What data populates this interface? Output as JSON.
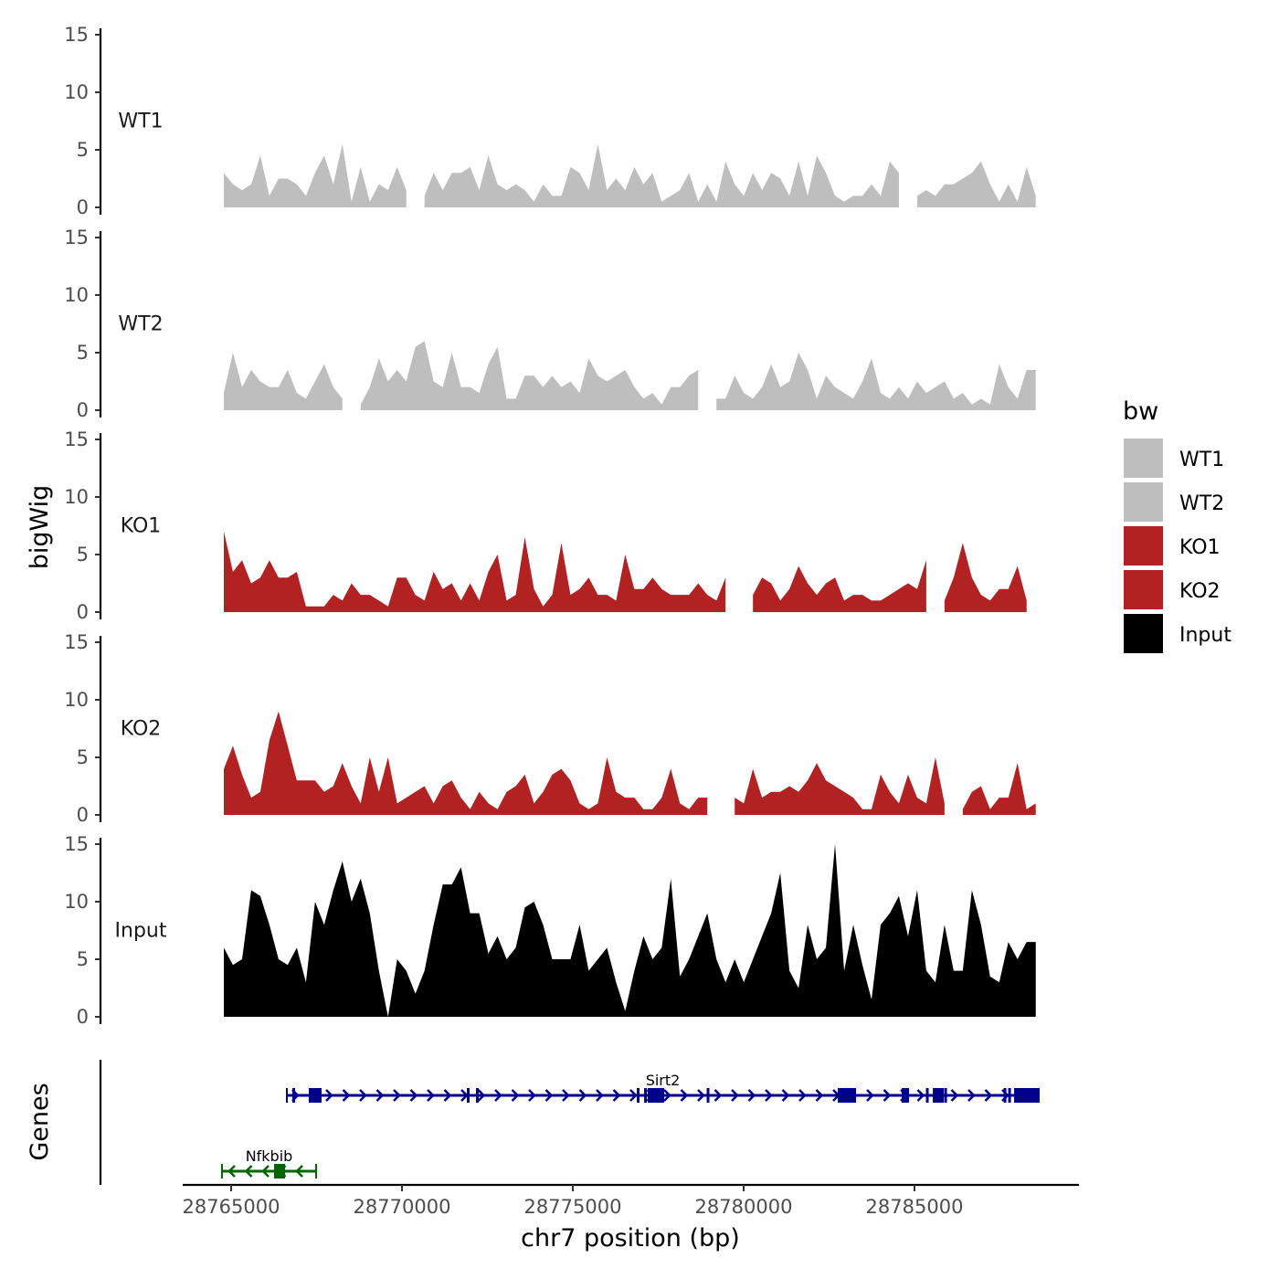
{
  "chart_data": {
    "type": "area",
    "title": "",
    "ylabel": "bigWig",
    "genes_label": "Genes",
    "xlabel": "chr7 position (bp)",
    "xlim": [
      28762600,
      28792200
    ],
    "x_ticks": [
      28765000,
      28770000,
      28775000,
      28780000,
      28785000
    ],
    "x_tick_labels": [
      "28765000",
      "28770000",
      "28775000",
      "28780000",
      "28785000"
    ],
    "ylim": [
      0,
      15
    ],
    "y_ticks": [
      0,
      5,
      10,
      15
    ],
    "y_tick_labels": [
      "0",
      "5",
      "10",
      "15"
    ],
    "bin_start": 28764786,
    "bin_width": 267,
    "legend": {
      "title": "bw",
      "placement": "right"
    },
    "series": [
      {
        "name": "WT1",
        "color": "#bebebe",
        "values": [
          3,
          2,
          1.5,
          2,
          4.5,
          1,
          2.5,
          2.5,
          2,
          1,
          3,
          4.5,
          2,
          5.5,
          0.5,
          3.5,
          0.5,
          2,
          1.5,
          3.5,
          1.5,
          null,
          1,
          3,
          1.5,
          3,
          3,
          3.5,
          1.5,
          4.5,
          2,
          1.5,
          2,
          1.5,
          0.5,
          2,
          1,
          1,
          3.5,
          3,
          1.5,
          5.5,
          1.5,
          2.5,
          1.5,
          3.5,
          2,
          3,
          0.5,
          1,
          1.5,
          3,
          0.5,
          2,
          0.5,
          4,
          2,
          1,
          3,
          1.5,
          3,
          2.5,
          1,
          4,
          1,
          4.5,
          3,
          1,
          0.5,
          1,
          1,
          2,
          1,
          4,
          3,
          null,
          1,
          1.5,
          1,
          2,
          2,
          2.5,
          3,
          4,
          2,
          0.5,
          2,
          0.5,
          3.5,
          1
        ]
      },
      {
        "name": "WT2",
        "color": "#bebebe",
        "values": [
          1.5,
          5,
          2,
          3.5,
          2.5,
          2,
          2,
          3.5,
          1.5,
          1,
          2.5,
          4,
          2,
          1,
          null,
          0.5,
          2,
          4.5,
          2.5,
          3.5,
          2.5,
          5.5,
          6,
          2.5,
          2,
          5,
          2,
          2,
          1.5,
          4,
          5.5,
          1,
          1,
          3,
          3,
          2,
          3,
          2,
          2.5,
          1.5,
          4.5,
          3,
          2.5,
          3,
          3.5,
          2,
          1,
          1.5,
          0.5,
          2,
          2,
          3,
          3.5,
          null,
          1,
          1,
          3,
          1.5,
          1,
          2,
          4,
          2,
          2.5,
          5,
          3.5,
          1,
          3,
          2,
          1.5,
          1,
          2.5,
          4.5,
          1.5,
          1,
          2,
          1,
          2.5,
          1.5,
          2,
          2.5,
          1,
          1.5,
          0.5,
          1,
          0.5,
          4,
          2,
          1,
          3.5,
          3.5
        ]
      },
      {
        "name": "KO1",
        "color": "#b22222",
        "values": [
          7,
          3.5,
          4.5,
          2.5,
          3,
          4.5,
          3,
          3,
          3.5,
          0.5,
          0.5,
          0.5,
          1.5,
          1,
          2.5,
          1.5,
          1.5,
          1,
          0.5,
          3,
          3,
          1.5,
          1,
          3.5,
          2,
          2.5,
          1,
          2.5,
          1,
          3.5,
          5,
          1,
          1.5,
          6.5,
          2,
          0.5,
          1.5,
          6,
          1.5,
          2,
          3,
          1.5,
          1.5,
          1,
          5,
          2,
          2,
          3,
          2,
          1.5,
          1.5,
          1.5,
          2.5,
          1.5,
          1,
          3,
          null,
          null,
          1.5,
          3,
          2.5,
          1,
          2,
          4,
          2.5,
          1.5,
          2.5,
          3,
          1,
          1.5,
          1.5,
          1,
          1,
          1.5,
          2,
          2.5,
          2,
          4.5,
          null,
          1,
          3,
          6,
          3,
          1.5,
          1,
          2,
          2,
          4,
          1,
          null
        ]
      },
      {
        "name": "KO2",
        "color": "#b22222",
        "values": [
          4,
          6,
          3.5,
          1.5,
          2,
          6.5,
          9,
          6,
          3,
          3,
          3,
          2,
          2.5,
          4.5,
          2.5,
          1,
          5,
          2,
          5,
          1,
          1.5,
          2,
          2.5,
          1,
          2.5,
          3,
          1.5,
          0.5,
          2,
          1,
          0.5,
          2,
          2.5,
          3.5,
          1,
          2,
          3.5,
          4,
          3,
          1,
          0.5,
          1,
          5,
          2,
          1.5,
          1.5,
          0.5,
          0.5,
          1.5,
          4,
          1,
          0.5,
          1.5,
          1.5,
          null,
          null,
          1.5,
          1,
          4,
          1.5,
          2,
          2,
          2.5,
          2,
          3,
          4.5,
          3,
          2.5,
          2,
          1.5,
          0.5,
          0.5,
          3.5,
          2,
          1,
          3.5,
          1.5,
          1,
          5,
          1,
          null,
          0.5,
          2,
          2.5,
          0.5,
          1.5,
          1.5,
          4.5,
          0.5,
          1
        ]
      },
      {
        "name": "Input",
        "color": "#000000",
        "values": [
          6,
          4.5,
          5,
          11,
          10.5,
          8,
          5,
          4.5,
          6,
          3,
          10,
          8,
          11,
          13.5,
          10,
          12,
          9,
          4,
          0,
          5,
          4,
          2,
          4,
          8,
          11.5,
          11.5,
          13,
          9,
          9,
          5.5,
          7,
          5,
          6,
          9.5,
          10,
          8,
          5,
          5,
          5,
          8,
          4,
          5,
          6,
          3,
          0.5,
          4,
          7,
          5,
          6,
          12,
          3.5,
          5,
          7,
          9,
          5,
          3,
          5,
          3,
          5,
          7,
          9,
          12.5,
          4,
          2.5,
          8,
          5,
          6,
          15,
          4,
          8,
          4.5,
          1.5,
          8,
          9,
          10.5,
          7,
          11,
          4,
          3,
          8,
          4,
          4,
          11,
          8,
          3.5,
          3,
          6.5,
          5,
          6.5,
          6.5
        ]
      }
    ],
    "genes": [
      {
        "name": "Sirt2",
        "strand": "+",
        "color": "#00008b",
        "start": 28766631,
        "end": 28788638,
        "exons": [
          [
            28766792,
            28766872
          ],
          [
            28767273,
            28767647
          ],
          [
            28771899,
            28771979
          ],
          [
            28772166,
            28772246
          ],
          [
            28776873,
            28776953
          ],
          [
            28777087,
            28777167
          ],
          [
            28777193,
            28777675
          ],
          [
            28778918,
            28778998
          ],
          [
            28782755,
            28783290
          ],
          [
            28784627,
            28784841
          ],
          [
            28785335,
            28785415
          ],
          [
            28785536,
            28785857
          ],
          [
            28785871,
            28785951
          ],
          [
            28787609,
            28787689
          ],
          [
            28787743,
            28787823
          ],
          [
            28787916,
            28788638
          ]
        ]
      },
      {
        "name": "Nfkbib",
        "strand": "-",
        "color": "#006400",
        "start": 28764733,
        "end": 28767487,
        "exons": [
          [
            28766257,
            28766578
          ]
        ]
      }
    ]
  }
}
